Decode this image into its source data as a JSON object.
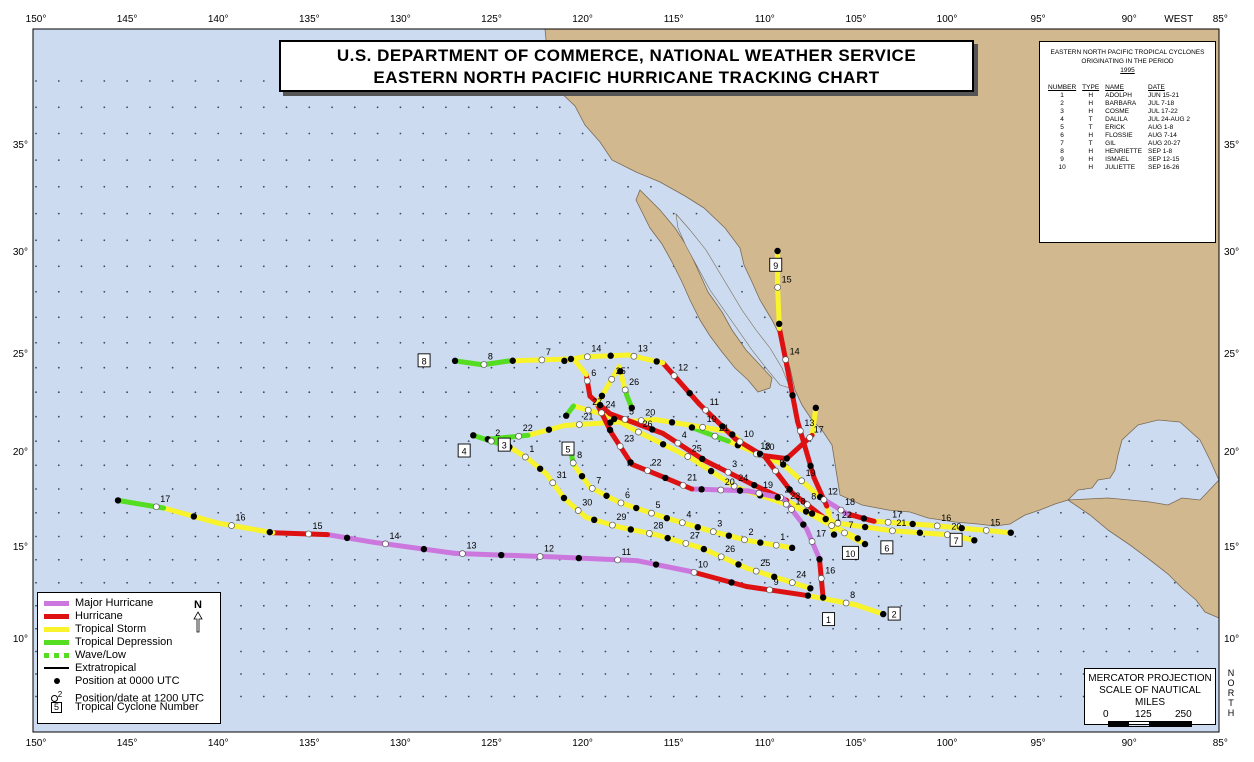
{
  "title": {
    "line1": "U.S. DEPARTMENT OF COMMERCE, NATIONAL WEATHER SERVICE",
    "line2": "EASTERN NORTH PACIFIC HURRICANE TRACKING CHART"
  },
  "axes": {
    "lon_labels": [
      "150°",
      "145°",
      "140°",
      "135°",
      "130°",
      "125°",
      "120°",
      "115°",
      "110°",
      "105°",
      "100°",
      "95°",
      "90°",
      "85°"
    ],
    "lon_values": [
      150,
      145,
      140,
      135,
      130,
      125,
      120,
      115,
      110,
      105,
      100,
      95,
      90,
      85
    ],
    "lat_labels": [
      "35°",
      "30°",
      "25°",
      "20°",
      "15°",
      "10°"
    ],
    "lat_values": [
      35,
      30,
      25,
      20,
      15,
      10
    ],
    "west_label": "WEST",
    "north_label": "NORTH"
  },
  "colors": {
    "ocean": "#ccdbef",
    "land": "#d1b88f",
    "major_hurricane": "#cc77dd",
    "hurricane": "#dd1111",
    "tropical_storm": "#f8f32b",
    "tropical_depression": "#55dd22"
  },
  "storm_table": {
    "header1": "EASTERN NORTH PACIFIC TROPICAL CYCLONES",
    "header2": "ORIGINATING IN THE PERIOD",
    "year": "1995",
    "columns": [
      "NUMBER",
      "TYPE",
      "NAME",
      "DATE"
    ],
    "rows": [
      [
        "1",
        "H",
        "ADOLPH",
        "JUN 15-21"
      ],
      [
        "2",
        "H",
        "BARBARA",
        "JUL 7-18"
      ],
      [
        "3",
        "H",
        "COSME",
        "JUL 17-22"
      ],
      [
        "4",
        "T",
        "DALILA",
        "JUL 24-AUG 2"
      ],
      [
        "5",
        "T",
        "ERICK",
        "AUG 1-8"
      ],
      [
        "6",
        "H",
        "FLOSSIE",
        "AUG 7-14"
      ],
      [
        "7",
        "T",
        "GIL",
        "AUG 20-27"
      ],
      [
        "8",
        "H",
        "HENRIETTE",
        "SEP 1-8"
      ],
      [
        "9",
        "H",
        "ISMAEL",
        "SEP 12-15"
      ],
      [
        "10",
        "H",
        "JULIETTE",
        "SEP 16-26"
      ]
    ]
  },
  "legend": {
    "items": [
      "Major Hurricane",
      "Hurricane",
      "Tropical Storm",
      "Tropical Depression",
      "Wave/Low",
      "Extratropical",
      "Position at 0000 UTC",
      "Position/date at 1200 UTC",
      "Tropical Cyclone Number"
    ],
    "north": "N",
    "pos_date_sample": "2",
    "number_sample": "5"
  },
  "scale": {
    "line1": "MERCATOR PROJECTION",
    "line2": "SCALE OF NAUTICAL MILES",
    "ticks": [
      "0",
      "125",
      "250"
    ]
  },
  "storms": [
    {
      "number": "1",
      "name": "ADOLPH",
      "label_at": [
        -106.5,
        11.0
      ],
      "dates": [
        "15",
        "16",
        "17",
        "18",
        "19",
        "20",
        "21"
      ],
      "track": [
        [
          -96.5,
          15.7,
          "D"
        ],
        [
          -101,
          16.1,
          "S"
        ],
        [
          -104,
          16.3,
          "S"
        ],
        [
          -105.5,
          16.7,
          "H"
        ],
        [
          -107,
          17.6,
          "M"
        ],
        [
          -109,
          19.3,
          "S"
        ],
        [
          -112,
          20.5,
          "S"
        ],
        [
          -114,
          21.2,
          "D"
        ]
      ]
    },
    {
      "number": "2",
      "name": "BARBARA",
      "label_at": [
        -102.9,
        11.3
      ],
      "dates": [
        "8",
        "9",
        "10",
        "11",
        "12",
        "13",
        "14",
        "15",
        "16",
        "17"
      ],
      "track": [
        [
          -103.5,
          11.3,
          "D"
        ],
        [
          -105,
          11.8,
          "S"
        ],
        [
          -107.6,
          12.3,
          "S"
        ],
        [
          -111,
          12.8,
          "H"
        ],
        [
          -114,
          13.6,
          "H"
        ],
        [
          -117,
          14.2,
          "M"
        ],
        [
          -121.5,
          14.4,
          "M"
        ],
        [
          -127,
          14.6,
          "M"
        ],
        [
          -131.5,
          15.2,
          "M"
        ],
        [
          -134,
          15.6,
          "M"
        ],
        [
          -137,
          15.7,
          "H"
        ],
        [
          -140,
          16.2,
          "S"
        ],
        [
          -143,
          17.0,
          "S"
        ],
        [
          -145.5,
          17.4,
          "D"
        ]
      ]
    },
    {
      "number": "3",
      "name": "COSME",
      "label_at": [
        -124.3,
        20.3
      ],
      "dates": [
        "17",
        "18",
        "19",
        "20",
        "21",
        "22"
      ],
      "track": [
        [
          -107.2,
          22.2,
          "D"
        ],
        [
          -107.4,
          20.8,
          "S"
        ],
        [
          -108.8,
          19.6,
          "H"
        ],
        [
          -110.4,
          19.8,
          "H"
        ],
        [
          -112,
          21.0,
          "S"
        ],
        [
          -116,
          21.6,
          "S"
        ],
        [
          -121,
          21.3,
          "S"
        ],
        [
          -123,
          20.8,
          "S"
        ],
        [
          -125.2,
          20.6,
          "D"
        ]
      ]
    },
    {
      "number": "4",
      "name": "DALILA",
      "label_at": [
        -126.5,
        20.0
      ],
      "dates": [
        "24",
        "25",
        "26",
        "27",
        "28",
        "29",
        "30",
        "31",
        "1",
        "2"
      ],
      "track": [
        [
          -107.5,
          12.7,
          "S"
        ],
        [
          -111,
          13.8,
          "S"
        ],
        [
          -113.5,
          14.9,
          "S"
        ],
        [
          -116,
          15.6,
          "S"
        ],
        [
          -118,
          16.0,
          "S"
        ],
        [
          -119.8,
          16.5,
          "S"
        ],
        [
          -121,
          17.5,
          "S"
        ],
        [
          -122,
          18.8,
          "S"
        ],
        [
          -123,
          19.6,
          "S"
        ],
        [
          -124,
          20.2,
          "S"
        ],
        [
          -126,
          20.8,
          "D"
        ]
      ]
    },
    {
      "number": "5",
      "name": "ERICK",
      "label_at": [
        -120.8,
        20.1
      ],
      "dates": [
        "1",
        "2",
        "3",
        "4",
        "5",
        "6",
        "7",
        "8"
      ],
      "track": [
        [
          -108.5,
          14.9,
          "S"
        ],
        [
          -111,
          15.3,
          "S"
        ],
        [
          -113,
          15.8,
          "S"
        ],
        [
          -115.5,
          16.5,
          "S"
        ],
        [
          -118,
          17.3,
          "S"
        ],
        [
          -119.6,
          18.1,
          "S"
        ],
        [
          -120.5,
          19.3,
          "S"
        ],
        [
          -120.7,
          20.2,
          "D"
        ]
      ]
    },
    {
      "number": "6",
      "name": "FLOSSIE",
      "label_at": [
        -103.3,
        14.9
      ],
      "dates": [
        "7",
        "8",
        "9",
        "10",
        "11",
        "12",
        "13",
        "14"
      ],
      "track": [
        [
          -104.5,
          15.1,
          "D"
        ],
        [
          -105.5,
          15.6,
          "S"
        ],
        [
          -106.5,
          16.3,
          "S"
        ],
        [
          -108.5,
          17.8,
          "H"
        ],
        [
          -110,
          19.7,
          "H"
        ],
        [
          -111.6,
          20.6,
          "H"
        ],
        [
          -113.6,
          22.4,
          "H"
        ],
        [
          -115.6,
          24.5,
          "H"
        ],
        [
          -117.5,
          24.9,
          "S"
        ],
        [
          -120,
          24.8,
          "S"
        ],
        [
          -121,
          24.6,
          "S"
        ]
      ]
    },
    {
      "number": "7",
      "name": "GIL",
      "label_at": [
        -99.5,
        15.3
      ],
      "dates": [
        "20",
        "21",
        "22",
        "23",
        "24",
        "25",
        "26",
        "27"
      ],
      "track": [
        [
          -98.5,
          15.3,
          "D"
        ],
        [
          -100,
          15.6,
          "S"
        ],
        [
          -103,
          15.8,
          "S"
        ],
        [
          -106,
          16.2,
          "S"
        ],
        [
          -108.5,
          17.1,
          "S"
        ],
        [
          -111.6,
          18.1,
          "S"
        ],
        [
          -114,
          19.6,
          "S"
        ],
        [
          -117,
          21.0,
          "S"
        ],
        [
          -118.6,
          21.8,
          "S"
        ],
        [
          -120.5,
          22.3,
          "S"
        ],
        [
          -120.9,
          21.8,
          "D"
        ]
      ]
    },
    {
      "number": "8",
      "name": "HENRIETTE",
      "label_at": [
        -128.7,
        24.6
      ],
      "dates": [
        "1",
        "2",
        "3",
        "4",
        "5",
        "6",
        "7",
        "8"
      ],
      "track": [
        [
          -104.9,
          15.4,
          "D"
        ],
        [
          -106.8,
          16.3,
          "S"
        ],
        [
          -108.8,
          17.4,
          "S"
        ],
        [
          -110.8,
          18.3,
          "H"
        ],
        [
          -113.3,
          19.5,
          "H"
        ],
        [
          -115.6,
          20.9,
          "H"
        ],
        [
          -118.5,
          21.9,
          "H"
        ],
        [
          -119.6,
          22.8,
          "H"
        ],
        [
          -119.8,
          23.9,
          "H"
        ],
        [
          -120.5,
          24.7,
          "S"
        ],
        [
          -124,
          24.6,
          "S"
        ],
        [
          -125.5,
          24.4,
          "D"
        ],
        [
          -127,
          24.6,
          "D"
        ]
      ]
    },
    {
      "number": "9",
      "name": "ISMAEL",
      "label_at": [
        -109.4,
        29.3
      ],
      "dates": [
        "12",
        "13",
        "14",
        "15"
      ],
      "track": [
        [
          -106.2,
          15.6,
          "D"
        ],
        [
          -106.6,
          17.1,
          "S"
        ],
        [
          -107.3,
          18.6,
          "H"
        ],
        [
          -108.2,
          21.5,
          "H"
        ],
        [
          -108.8,
          24.4,
          "H"
        ],
        [
          -109.2,
          26.2,
          "H"
        ],
        [
          -109.3,
          28.3,
          "S"
        ],
        [
          -109.3,
          30.0,
          "S"
        ]
      ]
    },
    {
      "number": "10",
      "name": "JULIETTE",
      "label_at": [
        -105.3,
        14.6
      ],
      "dates": [
        "16",
        "17",
        "18",
        "19",
        "20",
        "21",
        "22",
        "23",
        "24",
        "25",
        "26"
      ],
      "track": [
        [
          -106.8,
          12.2,
          "S"
        ],
        [
          -107.0,
          14.3,
          "H"
        ],
        [
          -107.7,
          15.9,
          "M"
        ],
        [
          -109,
          17.5,
          "M"
        ],
        [
          -110.9,
          17.9,
          "M"
        ],
        [
          -114,
          18.0,
          "M"
        ],
        [
          -115.5,
          18.6,
          "H"
        ],
        [
          -117.3,
          19.3,
          "H"
        ],
        [
          -118.4,
          20.9,
          "H"
        ],
        [
          -119.2,
          22.4,
          "H"
        ],
        [
          -118.0,
          24.3,
          "S"
        ],
        [
          -117.6,
          22.9,
          "S"
        ],
        [
          -117.3,
          22.2,
          "D"
        ]
      ]
    }
  ]
}
